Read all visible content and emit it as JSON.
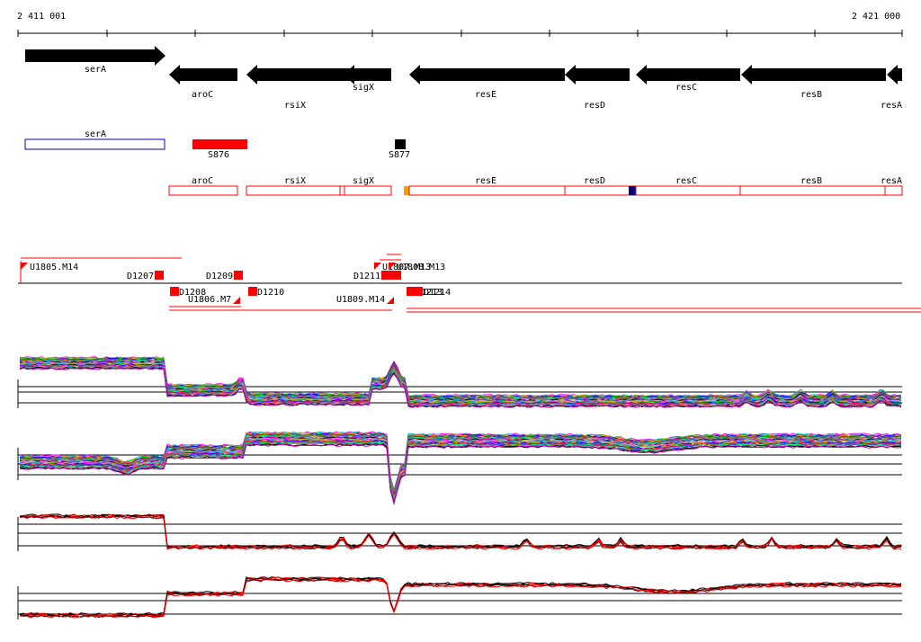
{
  "ruler": {
    "start_label": "2 411 001",
    "end_label": "2 421 000"
  },
  "genes": [
    {
      "label": "serA",
      "dir": "right"
    },
    {
      "label": "aroC",
      "dir": "left"
    },
    {
      "label": "rsiX",
      "dir": "left"
    },
    {
      "label": "sigX",
      "dir": "left"
    },
    {
      "label": "resE",
      "dir": "left"
    },
    {
      "label": "resD",
      "dir": "left"
    },
    {
      "label": "resC",
      "dir": "left"
    },
    {
      "label": "resB",
      "dir": "left"
    },
    {
      "label": "resA",
      "dir": "left"
    }
  ],
  "utr_track": [
    {
      "label": "serA",
      "style": "outline-blue"
    },
    {
      "label": "S876",
      "style": "red"
    },
    {
      "label": "S877",
      "style": "black"
    }
  ],
  "gene_boxes": [
    "aroC",
    "rsiX",
    "sigX",
    "resE",
    "resD",
    "resC",
    "resB",
    "resA"
  ],
  "marker_colors": {
    "orange": "#f0a000",
    "navy": "#000080"
  },
  "probes": [
    {
      "label": "U1805.M14"
    },
    {
      "label": "D1207"
    },
    {
      "label": "D1208"
    },
    {
      "label": "U1806.M7"
    },
    {
      "label": "D1209"
    },
    {
      "label": "D1210"
    },
    {
      "label": "D1211"
    },
    {
      "label": "U1807.M13"
    },
    {
      "label": "U1808.M13"
    },
    {
      "label": "U1809.M14"
    },
    {
      "label": "D1213"
    },
    {
      "label": "D1214"
    }
  ],
  "colors": {
    "gene_arrow": "#000000",
    "feature_red": "#ff0000",
    "feature_blue": "#0000c0",
    "axis": "#000000"
  },
  "expression_panels": [
    {
      "name": "forward-all-conditions",
      "multicolor": true
    },
    {
      "name": "reverse-all-conditions",
      "multicolor": true
    },
    {
      "name": "forward-summary",
      "multicolor": false
    },
    {
      "name": "reverse-summary",
      "multicolor": false
    }
  ]
}
